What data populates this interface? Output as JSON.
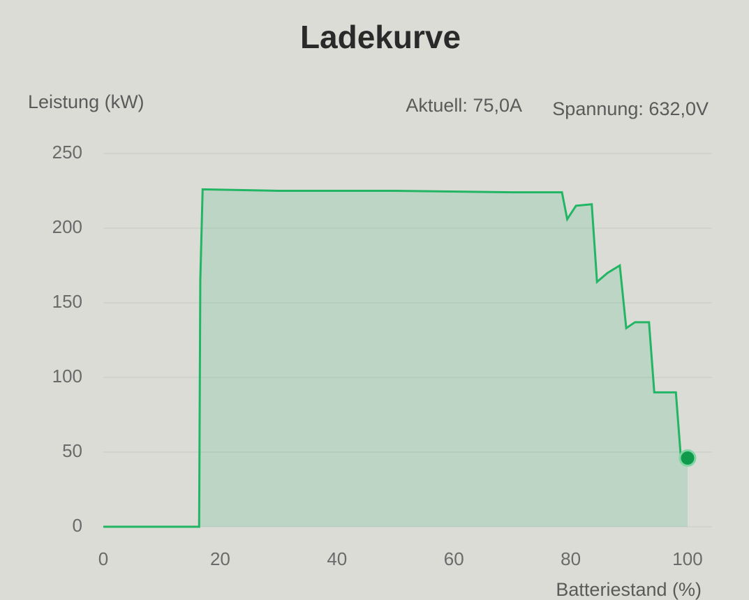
{
  "chart_data": {
    "type": "area-line",
    "title": "Ladekurve",
    "y_label": "Leistung (kW)",
    "x_label": "Batteriestand (%)",
    "annotations": [
      "Aktuell: 75,0A",
      "Spannung: 632,0V"
    ],
    "x": [
      0,
      16.4,
      16.6,
      17,
      30,
      50,
      70,
      78.5,
      79.4,
      80.9,
      83.6,
      84.5,
      86.3,
      88.4,
      89.5,
      91,
      93.4,
      94.3,
      98,
      98.8,
      100
    ],
    "series": [
      {
        "name": "Leistung",
        "color": "#22b564",
        "values": [
          0,
          0,
          165,
          226,
          225,
          225,
          224,
          224,
          206,
          215,
          216,
          164,
          170,
          175,
          133,
          137,
          137,
          90,
          90,
          49,
          46
        ]
      }
    ],
    "xlim": [
      0,
      100
    ],
    "xticks": [
      0,
      20,
      40,
      60,
      80,
      100
    ],
    "ylim": [
      0,
      250
    ],
    "yticks": [
      0,
      50,
      100,
      150,
      200,
      250
    ],
    "grid": true
  }
}
